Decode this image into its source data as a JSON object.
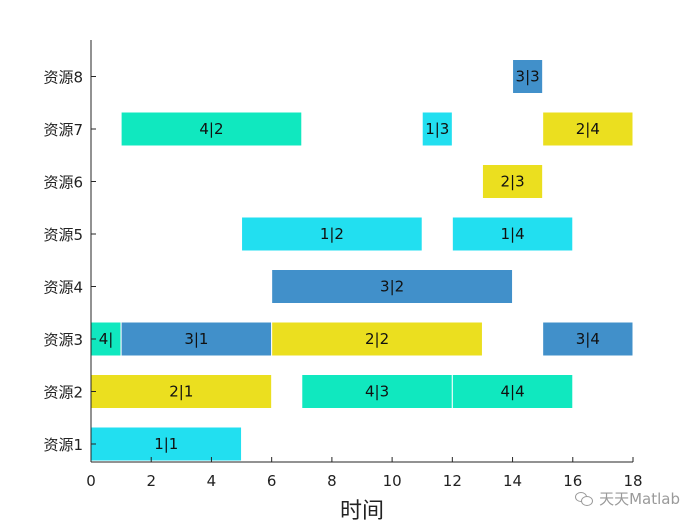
{
  "chart_data": {
    "type": "bar",
    "orientation": "horizontal-gantt",
    "title": "",
    "xlabel": "时间",
    "ylabel": "",
    "xlim": [
      0,
      18
    ],
    "xticks": [
      "0",
      "2",
      "4",
      "6",
      "8",
      "10",
      "12",
      "14",
      "16",
      "18"
    ],
    "categories": [
      "资源1",
      "资源2",
      "资源3",
      "资源4",
      "资源5",
      "资源6",
      "资源7",
      "资源8"
    ],
    "grid": false,
    "colors": {
      "job1": "#22dff0",
      "job2": "#ebdf1f",
      "job3": "#4190ca",
      "job4": "#10e8bf"
    },
    "tasks": [
      {
        "resource": "资源1",
        "start": 0,
        "end": 5,
        "label": "1|1",
        "job": "job1"
      },
      {
        "resource": "资源2",
        "start": 0,
        "end": 6,
        "label": "2|1",
        "job": "job2"
      },
      {
        "resource": "资源2",
        "start": 7,
        "end": 12,
        "label": "4|3",
        "job": "job4"
      },
      {
        "resource": "资源2",
        "start": 12,
        "end": 16,
        "label": "4|4",
        "job": "job4"
      },
      {
        "resource": "资源3",
        "start": 0,
        "end": 1,
        "label": "4|",
        "job": "job4"
      },
      {
        "resource": "资源3",
        "start": 1,
        "end": 6,
        "label": "3|1",
        "job": "job3"
      },
      {
        "resource": "资源3",
        "start": 6,
        "end": 13,
        "label": "2|2",
        "job": "job2"
      },
      {
        "resource": "资源3",
        "start": 15,
        "end": 18,
        "label": "3|4",
        "job": "job3"
      },
      {
        "resource": "资源4",
        "start": 6,
        "end": 14,
        "label": "3|2",
        "job": "job3"
      },
      {
        "resource": "资源5",
        "start": 5,
        "end": 11,
        "label": "1|2",
        "job": "job1"
      },
      {
        "resource": "资源5",
        "start": 12,
        "end": 16,
        "label": "1|4",
        "job": "job1"
      },
      {
        "resource": "资源6",
        "start": 13,
        "end": 15,
        "label": "2|3",
        "job": "job2"
      },
      {
        "resource": "资源7",
        "start": 1,
        "end": 7,
        "label": "4|2",
        "job": "job4"
      },
      {
        "resource": "资源7",
        "start": 11,
        "end": 12,
        "label": "1|3",
        "job": "job1"
      },
      {
        "resource": "资源7",
        "start": 15,
        "end": 18,
        "label": "2|4",
        "job": "job2"
      },
      {
        "resource": "资源8",
        "start": 14,
        "end": 15,
        "label": "3|3",
        "job": "job3"
      }
    ]
  },
  "watermark": {
    "text": "天天Matlab",
    "icon": "wechat-icon"
  }
}
